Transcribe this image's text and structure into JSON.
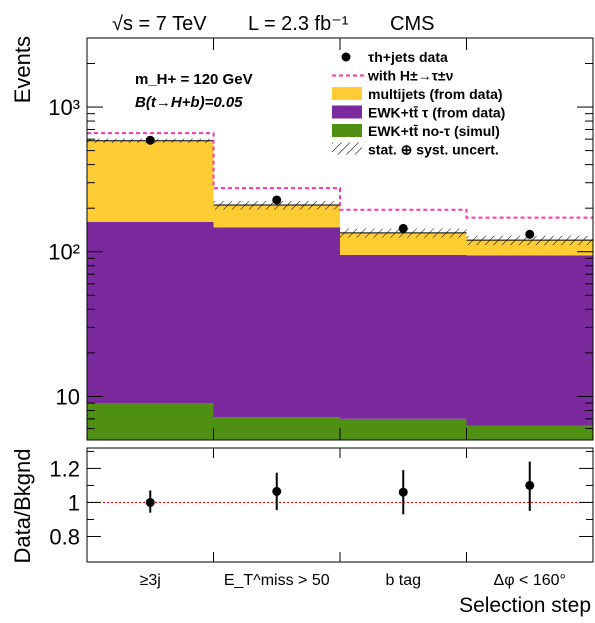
{
  "header": {
    "energy": "√s = 7 TeV",
    "lumi": "L = 2.3 fb⁻¹",
    "experiment": "CMS"
  },
  "annotation": {
    "mass_line": "m_H+ = 120 GeV",
    "br_line": "B(t→H+b)=0.05"
  },
  "colors": {
    "multijets": "#ffcc33",
    "ewk_tau": "#7b2a9e",
    "ewk_notau": "#4f8f12",
    "signal": "#ff33aa",
    "ratio_line": "#ff0000"
  },
  "chart_data": [
    {
      "type": "bar",
      "stacked": true,
      "log_y": true,
      "ylabel": "Events",
      "ylim": [
        5,
        3000
      ],
      "y_ticks": [
        "10",
        "10²",
        "10³"
      ],
      "categories": [
        "≥3j",
        "E_T^miss > 50",
        "b tag",
        "Δφ < 160°"
      ],
      "series": [
        {
          "name": "EWK+tt̄ no-τ (simul)",
          "key": "ewk_notau",
          "values": [
            9,
            7.2,
            7,
            6.3
          ]
        },
        {
          "name": "EWK+tt̄ τ (from data)",
          "key": "ewk_tau",
          "values": [
            152,
            140,
            88,
            88
          ]
        },
        {
          "name": "multijets (from data)",
          "key": "multijets",
          "values": [
            424,
            63,
            40,
            26
          ]
        }
      ],
      "total": [
        585,
        210,
        135,
        120
      ],
      "uncertainty": [
        20,
        14,
        10,
        9
      ],
      "signal": {
        "name": "with H±→τ±ν",
        "values": [
          660,
          275,
          195,
          172
        ]
      },
      "data": {
        "name": "τh+jets data",
        "values": [
          590,
          228,
          145,
          132
        ]
      },
      "legend": [
        {
          "label": "τh+jets data",
          "key": "data"
        },
        {
          "label": "with H±→τ±ν",
          "key": "signal"
        },
        {
          "label": "multijets (from data)",
          "key": "multijets"
        },
        {
          "label": "EWK+tt̄ τ (from data)",
          "key": "ewk_tau"
        },
        {
          "label": "EWK+tt̄ no-τ (simul)",
          "key": "ewk_notau"
        },
        {
          "label": "stat. ⊕ syst. uncert.",
          "key": "uncert"
        }
      ],
      "legend_position": "top-right"
    },
    {
      "type": "scatter",
      "ylabel": "Data/Bkgnd",
      "xlabel": "Selection step",
      "ylim": [
        0.65,
        1.32
      ],
      "y_ticks": [
        "0.8",
        "1",
        "1.2"
      ],
      "reference_line": 1,
      "categories": [
        "≥3j",
        "E_T^miss > 50",
        "b tag",
        "Δφ < 160°"
      ],
      "values": [
        1.0,
        1.065,
        1.06,
        1.1
      ],
      "err_up": [
        0.07,
        0.11,
        0.13,
        0.14
      ],
      "err_down": [
        0.06,
        0.11,
        0.13,
        0.15
      ]
    }
  ]
}
